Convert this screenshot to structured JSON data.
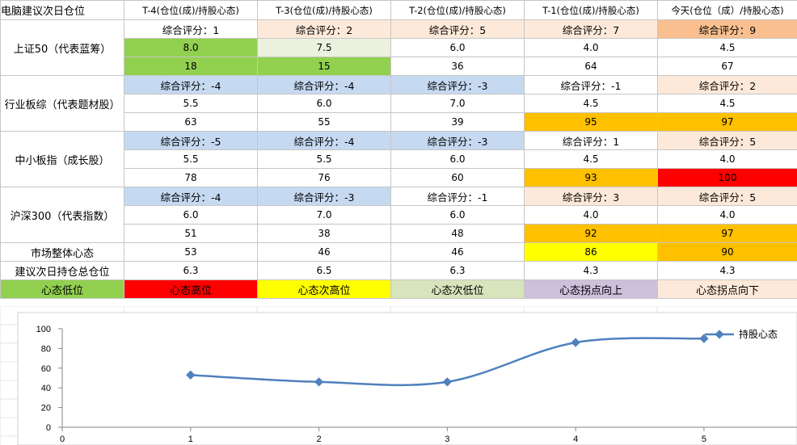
{
  "colors": {
    "green": "#92d050",
    "light_green": "#ebf1de",
    "blue": "#c5d9f1",
    "peach": "#fde9d9",
    "tan": "#fabf8f",
    "orange": "#ffc000",
    "red": "#ff0000",
    "yellow": "#ffff00",
    "pale_green": "#d8e4bc",
    "lavender": "#ccc0da",
    "series_line": "#4f81bd"
  },
  "header": {
    "corner": "电脑建议次日仓位",
    "columns": [
      "T-4(仓位(成)/持股心态)",
      "T-3(仓位(成)/持股心态)",
      "T-2(仓位(成)/持股心态)",
      "T-1(仓位(成)/持股心态)",
      "今天(仓位（成）/持股心态)"
    ]
  },
  "groups": [
    {
      "label": "上证50（代表蓝筹）",
      "score": [
        {
          "t": "综合评分：1",
          "c": "white"
        },
        {
          "t": "综合评分：2",
          "c": "peach"
        },
        {
          "t": "综合评分：5",
          "c": "peach"
        },
        {
          "t": "综合评分：7",
          "c": "peach"
        },
        {
          "t": "综合评分：9",
          "c": "tan"
        }
      ],
      "position": [
        {
          "t": "8.0",
          "c": "green"
        },
        {
          "t": "7.5",
          "c": "light_green"
        },
        {
          "t": "6.0",
          "c": "white"
        },
        {
          "t": "4.0",
          "c": "white"
        },
        {
          "t": "4.5",
          "c": "white"
        }
      ],
      "mood": [
        {
          "t": "18",
          "c": "green"
        },
        {
          "t": "15",
          "c": "green"
        },
        {
          "t": "36",
          "c": "white"
        },
        {
          "t": "64",
          "c": "white"
        },
        {
          "t": "67",
          "c": "white"
        }
      ]
    },
    {
      "label": "行业板综（代表题材股）",
      "score": [
        {
          "t": "综合评分：-4",
          "c": "blue"
        },
        {
          "t": "综合评分：-4",
          "c": "blue"
        },
        {
          "t": "综合评分：-3",
          "c": "blue"
        },
        {
          "t": "综合评分：-1",
          "c": "white"
        },
        {
          "t": "综合评分：2",
          "c": "peach"
        }
      ],
      "position": [
        {
          "t": "5.5",
          "c": "white"
        },
        {
          "t": "6.0",
          "c": "white"
        },
        {
          "t": "7.0",
          "c": "white"
        },
        {
          "t": "4.5",
          "c": "white"
        },
        {
          "t": "4.5",
          "c": "white"
        }
      ],
      "mood": [
        {
          "t": "63",
          "c": "white"
        },
        {
          "t": "55",
          "c": "white"
        },
        {
          "t": "39",
          "c": "white"
        },
        {
          "t": "95",
          "c": "orange"
        },
        {
          "t": "97",
          "c": "orange"
        }
      ]
    },
    {
      "label": "中小板指（成长股）",
      "score": [
        {
          "t": "综合评分：-5",
          "c": "blue"
        },
        {
          "t": "综合评分：-4",
          "c": "blue"
        },
        {
          "t": "综合评分：-3",
          "c": "blue"
        },
        {
          "t": "综合评分：1",
          "c": "white"
        },
        {
          "t": "综合评分：5",
          "c": "peach"
        }
      ],
      "position": [
        {
          "t": "5.5",
          "c": "white"
        },
        {
          "t": "5.5",
          "c": "white"
        },
        {
          "t": "6.0",
          "c": "white"
        },
        {
          "t": "4.5",
          "c": "white"
        },
        {
          "t": "4.0",
          "c": "white"
        }
      ],
      "mood": [
        {
          "t": "78",
          "c": "white"
        },
        {
          "t": "76",
          "c": "white"
        },
        {
          "t": "60",
          "c": "white"
        },
        {
          "t": "93",
          "c": "orange"
        },
        {
          "t": "100",
          "c": "red"
        }
      ]
    },
    {
      "label": "沪深300（代表指数）",
      "score": [
        {
          "t": "综合评分：-4",
          "c": "blue"
        },
        {
          "t": "综合评分：-3",
          "c": "blue"
        },
        {
          "t": "综合评分：-1",
          "c": "white"
        },
        {
          "t": "综合评分：3",
          "c": "peach"
        },
        {
          "t": "综合评分：5",
          "c": "peach"
        }
      ],
      "position": [
        {
          "t": "6.0",
          "c": "white"
        },
        {
          "t": "7.0",
          "c": "white"
        },
        {
          "t": "6.0",
          "c": "white"
        },
        {
          "t": "4.0",
          "c": "white"
        },
        {
          "t": "4.0",
          "c": "white"
        }
      ],
      "mood": [
        {
          "t": "51",
          "c": "white"
        },
        {
          "t": "38",
          "c": "white"
        },
        {
          "t": "48",
          "c": "white"
        },
        {
          "t": "92",
          "c": "orange"
        },
        {
          "t": "97",
          "c": "orange"
        }
      ]
    }
  ],
  "market_mood": {
    "label": "市场整体心态",
    "values": [
      {
        "t": "53",
        "c": "white"
      },
      {
        "t": "46",
        "c": "white"
      },
      {
        "t": "46",
        "c": "white"
      },
      {
        "t": "86",
        "c": "yellow"
      },
      {
        "t": "90",
        "c": "orange"
      }
    ]
  },
  "suggestion": {
    "label": "建议次日持仓总仓位",
    "values": [
      "6.3",
      "6.5",
      "6.3",
      "4.3",
      "4.3"
    ]
  },
  "legend": [
    {
      "t": "心态低位",
      "c": "green"
    },
    {
      "t": "心态高位",
      "c": "red"
    },
    {
      "t": "心态次高位",
      "c": "yellow"
    },
    {
      "t": "心态次低位",
      "c": "pale_green"
    },
    {
      "t": "心态拐点向上",
      "c": "lavender"
    },
    {
      "t": "心态拐点向下",
      "c": "peach"
    }
  ],
  "chart_data": {
    "type": "line",
    "title": "",
    "xlabel": "",
    "ylabel": "",
    "x": [
      1,
      2,
      3,
      4,
      5
    ],
    "x_ticks": [
      0,
      1,
      2,
      3,
      4,
      5
    ],
    "y_ticks": [
      0,
      20,
      40,
      60,
      80,
      100
    ],
    "xlim": [
      0,
      5.75
    ],
    "ylim": [
      0,
      100
    ],
    "series": [
      {
        "name": "持股心态",
        "values": [
          53,
          46,
          46,
          86,
          90
        ]
      }
    ],
    "legend_position": "top-right",
    "smooth": true,
    "grid": false
  }
}
